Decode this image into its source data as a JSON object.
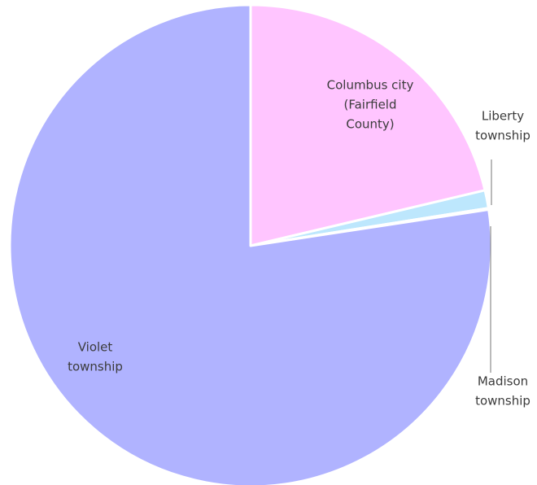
{
  "chart_data": {
    "type": "pie",
    "title": "",
    "unit": "percent",
    "start_angle_deg": 0,
    "direction": "clockwise",
    "slices": [
      {
        "label": "Columbus city (Fairfield County)",
        "label_lines": [
          "Columbus city",
          "(Fairfield",
          "County)"
        ],
        "value": 21.3,
        "color": "#ffc5ff"
      },
      {
        "label": "Liberty township",
        "label_lines": [
          "Liberty",
          "township"
        ],
        "value": 1.2,
        "color": "#bde7fd"
      },
      {
        "label": "Madison township",
        "label_lines": [
          "Madison",
          "township"
        ],
        "value": 0.1,
        "color": "#c8c8c8"
      },
      {
        "label": "Violet township",
        "label_lines": [
          "Violet",
          "township"
        ],
        "value": 77.4,
        "color": "#b0b3ff"
      }
    ]
  }
}
